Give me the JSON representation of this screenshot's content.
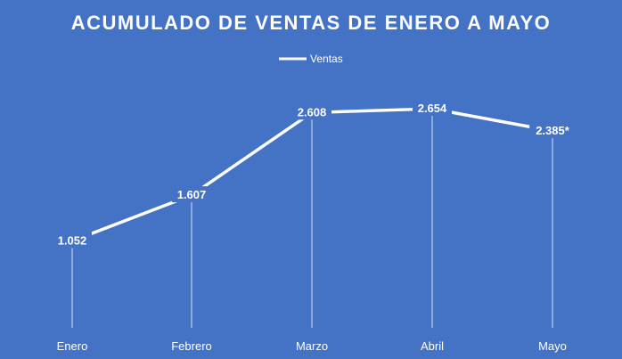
{
  "chart_data": {
    "type": "line",
    "title": "ACUMULADO DE VENTAS DE ENERO A MAYO",
    "categories": [
      "Enero",
      "Febrero",
      "Marzo",
      "Abril",
      "Mayo"
    ],
    "series": [
      {
        "name": "Ventas",
        "values": [
          1.052,
          1.607,
          2.608,
          2.654,
          2.385
        ]
      }
    ],
    "data_labels": [
      "1.052",
      "1.607",
      "2.608",
      "2.654",
      "2.385*"
    ],
    "ylim": [
      0,
      3.0
    ],
    "xlabel": "",
    "ylabel": "",
    "grid": false,
    "drop_lines": true,
    "legend_position": "top",
    "colors": {
      "background": "#4472C4",
      "line": "#FFFFFF",
      "text": "#FFFFFF"
    }
  }
}
